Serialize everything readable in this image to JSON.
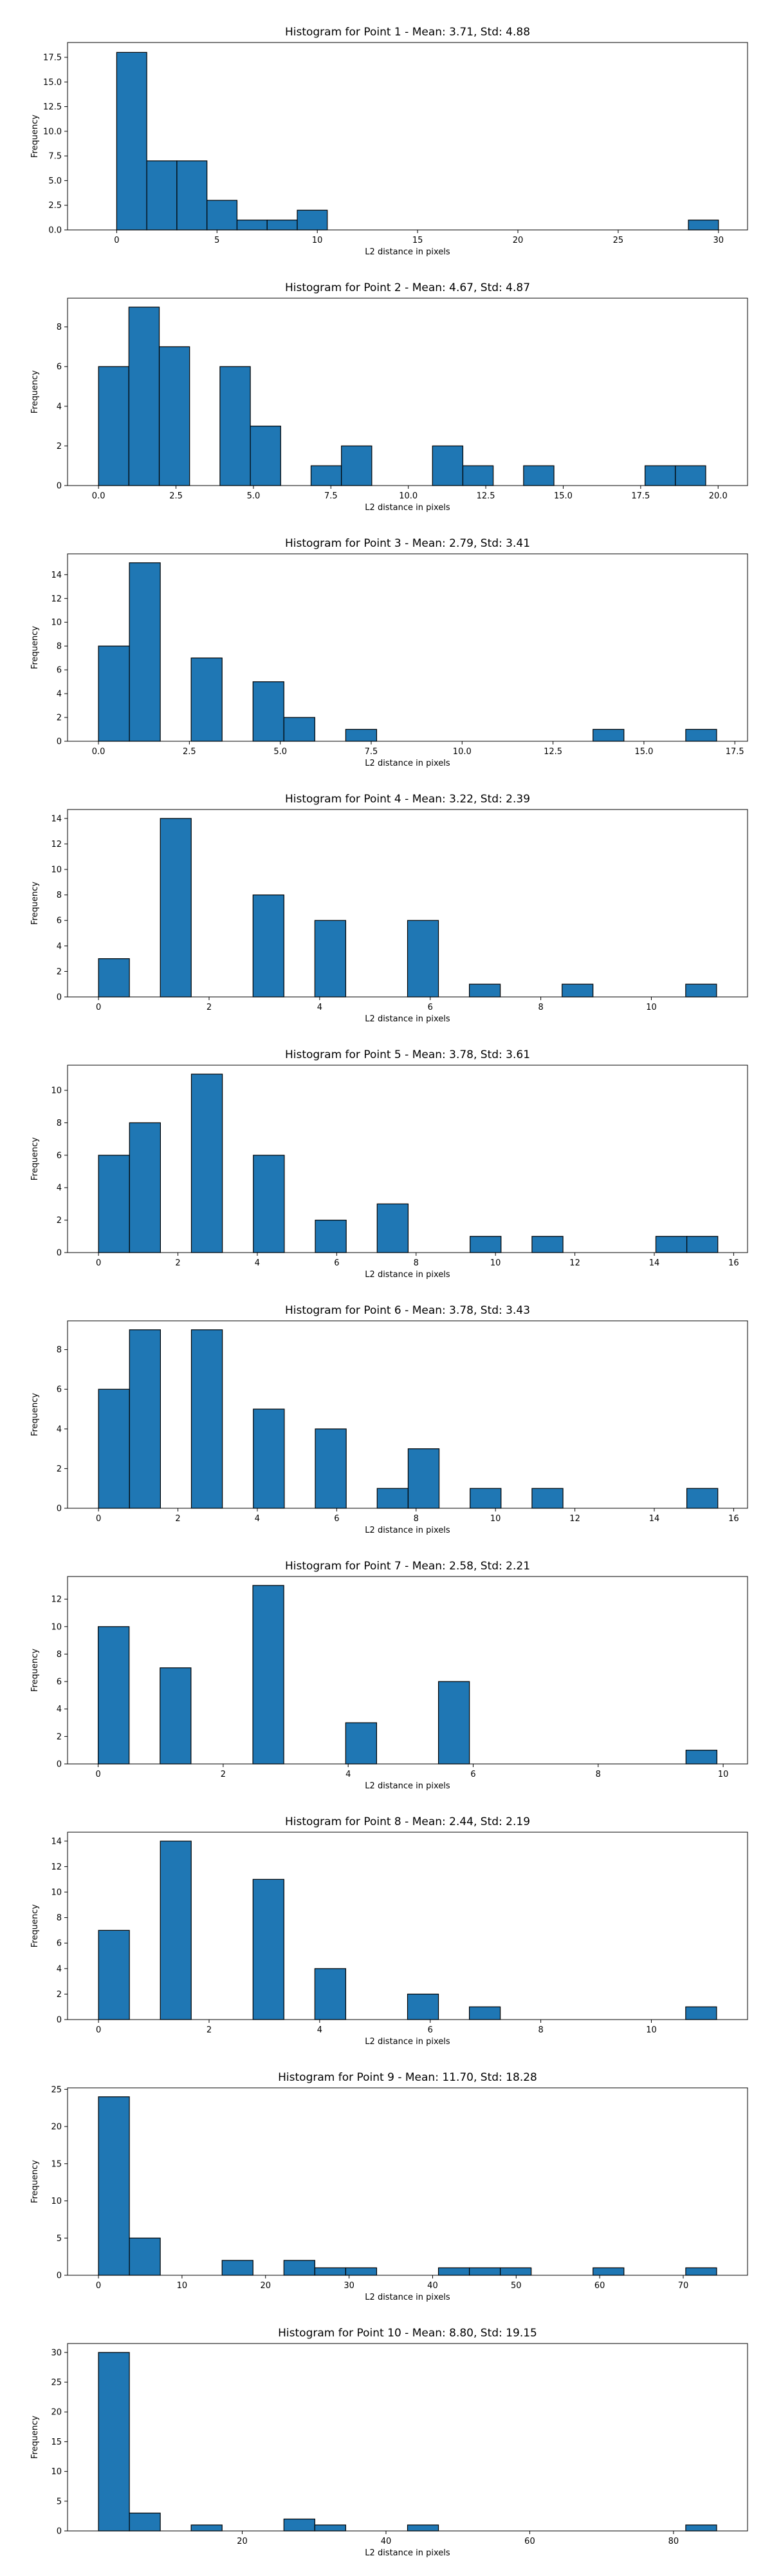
{
  "colors": {
    "bar": "#1f77b4",
    "edge": "#000000",
    "background": "#ffffff"
  },
  "chart_data": [
    {
      "type": "bar",
      "title": "Histogram for Point 1 - Mean: 3.71, Std: 4.88",
      "xlabel": "L2 distance in pixels",
      "ylabel": "Frequency",
      "xlim": [
        -2.45,
        31.45
      ],
      "ylim": [
        0,
        19.0
      ],
      "xticks": [
        0,
        5,
        10,
        15,
        20,
        25,
        30
      ],
      "xtick_labels": [
        "0",
        "5",
        "10",
        "15",
        "20",
        "25",
        "30"
      ],
      "yticks": [
        0,
        2.5,
        5.0,
        7.5,
        10.0,
        12.5,
        15.0,
        17.5
      ],
      "ytick_labels": [
        "0.0",
        "2.5",
        "5.0",
        "7.5",
        "10.0",
        "12.5",
        "15.0",
        "17.5"
      ],
      "bin_edges": [
        0,
        1.5,
        3.0,
        4.5,
        6.0,
        7.5,
        9.0,
        10.5,
        12.0,
        13.5,
        15.0,
        16.5,
        18.0,
        19.5,
        21.0,
        22.5,
        24.0,
        25.5,
        27.0,
        28.5,
        30.0
      ],
      "counts": [
        18,
        7,
        7,
        3,
        1,
        1,
        2,
        0,
        0,
        0,
        0,
        0,
        0,
        0,
        0,
        0,
        0,
        0,
        0,
        1
      ],
      "grid": false
    },
    {
      "type": "bar",
      "title": "Histogram for Point 2 - Mean: 4.67, Std: 4.87",
      "xlabel": "L2 distance in pixels",
      "ylabel": "Frequency",
      "xlim": [
        -1.0,
        20.95
      ],
      "ylim": [
        0,
        9.45
      ],
      "xticks": [
        0,
        2.5,
        5.0,
        7.5,
        10.0,
        12.5,
        15.0,
        17.5,
        20.0
      ],
      "xtick_labels": [
        "0.0",
        "2.5",
        "5.0",
        "7.5",
        "10.0",
        "12.5",
        "15.0",
        "17.5",
        "20.0"
      ],
      "yticks": [
        0,
        2,
        4,
        6,
        8
      ],
      "ytick_labels": [
        "0",
        "2",
        "4",
        "6",
        "8"
      ],
      "bin_edges": [
        0,
        0.98,
        1.96,
        2.94,
        3.92,
        4.9,
        5.88,
        6.86,
        7.84,
        8.82,
        9.8,
        10.78,
        11.76,
        12.74,
        13.72,
        14.7,
        15.68,
        16.66,
        17.64,
        18.62,
        19.6
      ],
      "counts": [
        6,
        9,
        7,
        0,
        6,
        3,
        0,
        1,
        2,
        0,
        0,
        2,
        1,
        0,
        1,
        0,
        0,
        0,
        1,
        1
      ],
      "grid": false
    },
    {
      "type": "bar",
      "title": "Histogram for Point 3 - Mean: 2.79, Std: 3.41",
      "xlabel": "L2 distance in pixels",
      "ylabel": "Frequency",
      "xlim": [
        -0.85,
        17.85
      ],
      "ylim": [
        0,
        15.75
      ],
      "xticks": [
        0,
        2.5,
        5.0,
        7.5,
        10.0,
        12.5,
        15.0,
        17.5
      ],
      "xtick_labels": [
        "0.0",
        "2.5",
        "5.0",
        "7.5",
        "10.0",
        "12.5",
        "15.0",
        "17.5"
      ],
      "yticks": [
        0,
        2,
        4,
        6,
        8,
        10,
        12,
        14
      ],
      "ytick_labels": [
        "0",
        "2",
        "4",
        "6",
        "8",
        "10",
        "12",
        "14"
      ],
      "bin_edges": [
        0,
        0.85,
        1.7,
        2.55,
        3.4,
        4.25,
        5.1,
        5.95,
        6.8,
        7.65,
        8.5,
        9.35,
        10.2,
        11.05,
        11.9,
        12.75,
        13.6,
        14.45,
        15.3,
        16.15,
        17.0
      ],
      "counts": [
        8,
        15,
        0,
        7,
        0,
        5,
        2,
        0,
        1,
        0,
        0,
        0,
        0,
        0,
        0,
        0,
        1,
        0,
        0,
        1
      ],
      "grid": false
    },
    {
      "type": "bar",
      "title": "Histogram for Point 4 - Mean: 3.22, Std: 2.39",
      "xlabel": "L2 distance in pixels",
      "ylabel": "Frequency",
      "xlim": [
        -0.56,
        11.74
      ],
      "ylim": [
        0,
        14.7
      ],
      "xticks": [
        0,
        2,
        4,
        6,
        8,
        10
      ],
      "xtick_labels": [
        "0",
        "2",
        "4",
        "6",
        "8",
        "10"
      ],
      "yticks": [
        0,
        2,
        4,
        6,
        8,
        10,
        12,
        14
      ],
      "ytick_labels": [
        "0",
        "2",
        "4",
        "6",
        "8",
        "10",
        "12",
        "14"
      ],
      "bin_edges": [
        0,
        0.559,
        1.118,
        1.677,
        2.236,
        2.795,
        3.354,
        3.913,
        4.472,
        5.031,
        5.59,
        6.149,
        6.708,
        7.267,
        7.826,
        8.385,
        8.944,
        9.503,
        10.062,
        10.621,
        11.18
      ],
      "counts": [
        3,
        0,
        14,
        0,
        0,
        8,
        0,
        6,
        0,
        0,
        6,
        0,
        1,
        0,
        0,
        1,
        0,
        0,
        0,
        1
      ],
      "grid": false
    },
    {
      "type": "bar",
      "title": "Histogram for Point 5 - Mean: 3.78, Std: 3.61",
      "xlabel": "L2 distance in pixels",
      "ylabel": "Frequency",
      "xlim": [
        -0.78,
        16.35
      ],
      "ylim": [
        0,
        11.55
      ],
      "xticks": [
        0,
        2,
        4,
        6,
        8,
        10,
        12,
        14,
        16
      ],
      "xtick_labels": [
        "0",
        "2",
        "4",
        "6",
        "8",
        "10",
        "12",
        "14",
        "16"
      ],
      "yticks": [
        0,
        2,
        4,
        6,
        8,
        10
      ],
      "ytick_labels": [
        "0",
        "2",
        "4",
        "6",
        "8",
        "10"
      ],
      "bin_edges": [
        0,
        0.78,
        1.56,
        2.34,
        3.12,
        3.9,
        4.68,
        5.46,
        6.24,
        7.02,
        7.8,
        8.58,
        9.36,
        10.14,
        10.92,
        11.7,
        12.48,
        13.26,
        14.04,
        14.82,
        15.6
      ],
      "counts": [
        6,
        8,
        0,
        11,
        0,
        6,
        0,
        2,
        0,
        3,
        0,
        0,
        1,
        0,
        1,
        0,
        0,
        0,
        1,
        1
      ],
      "grid": false
    },
    {
      "type": "bar",
      "title": "Histogram for Point 6 - Mean: 3.78, Std: 3.43",
      "xlabel": "L2 distance in pixels",
      "ylabel": "Frequency",
      "xlim": [
        -0.78,
        16.35
      ],
      "ylim": [
        0,
        9.45
      ],
      "xticks": [
        0,
        2,
        4,
        6,
        8,
        10,
        12,
        14,
        16
      ],
      "xtick_labels": [
        "0",
        "2",
        "4",
        "6",
        "8",
        "10",
        "12",
        "14",
        "16"
      ],
      "yticks": [
        0,
        2,
        4,
        6,
        8
      ],
      "ytick_labels": [
        "0",
        "2",
        "4",
        "6",
        "8"
      ],
      "bin_edges": [
        0,
        0.78,
        1.56,
        2.34,
        3.12,
        3.9,
        4.68,
        5.46,
        6.24,
        7.02,
        7.8,
        8.58,
        9.36,
        10.14,
        10.92,
        11.7,
        12.48,
        13.26,
        14.04,
        14.82,
        15.6
      ],
      "counts": [
        6,
        9,
        0,
        9,
        0,
        5,
        0,
        4,
        0,
        1,
        3,
        0,
        1,
        0,
        1,
        0,
        0,
        0,
        0,
        1
      ],
      "grid": false
    },
    {
      "type": "bar",
      "title": "Histogram for Point 7 - Mean: 2.58, Std: 2.21",
      "xlabel": "L2 distance in pixels",
      "ylabel": "Frequency",
      "xlim": [
        -0.49,
        10.39
      ],
      "ylim": [
        0,
        13.65
      ],
      "xticks": [
        0,
        2,
        4,
        6,
        8,
        10
      ],
      "xtick_labels": [
        "0",
        "2",
        "4",
        "6",
        "8",
        "10"
      ],
      "yticks": [
        0,
        2,
        4,
        6,
        8,
        10,
        12
      ],
      "ytick_labels": [
        "0",
        "2",
        "4",
        "6",
        "8",
        "10",
        "12"
      ],
      "bin_edges": [
        0,
        0.495,
        0.99,
        1.485,
        1.98,
        2.475,
        2.97,
        3.465,
        3.96,
        4.455,
        4.95,
        5.445,
        5.94,
        6.435,
        6.93,
        7.425,
        7.92,
        8.415,
        8.91,
        9.405,
        9.9
      ],
      "counts": [
        10,
        0,
        7,
        0,
        0,
        13,
        0,
        0,
        3,
        0,
        0,
        6,
        0,
        0,
        0,
        0,
        0,
        0,
        0,
        1
      ],
      "grid": false
    },
    {
      "type": "bar",
      "title": "Histogram for Point 8 - Mean: 2.44, Std: 2.19",
      "xlabel": "L2 distance in pixels",
      "ylabel": "Frequency",
      "xlim": [
        -0.56,
        11.74
      ],
      "ylim": [
        0,
        14.7
      ],
      "xticks": [
        0,
        2,
        4,
        6,
        8,
        10
      ],
      "xtick_labels": [
        "0",
        "2",
        "4",
        "6",
        "8",
        "10"
      ],
      "yticks": [
        0,
        2,
        4,
        6,
        8,
        10,
        12,
        14
      ],
      "ytick_labels": [
        "0",
        "2",
        "4",
        "6",
        "8",
        "10",
        "12",
        "14"
      ],
      "bin_edges": [
        0,
        0.559,
        1.118,
        1.677,
        2.236,
        2.795,
        3.354,
        3.913,
        4.472,
        5.031,
        5.59,
        6.149,
        6.708,
        7.267,
        7.826,
        8.385,
        8.944,
        9.503,
        10.062,
        10.621,
        11.18
      ],
      "counts": [
        7,
        0,
        14,
        0,
        0,
        11,
        0,
        4,
        0,
        0,
        2,
        0,
        1,
        0,
        0,
        0,
        0,
        0,
        0,
        1
      ],
      "grid": false
    },
    {
      "type": "bar",
      "title": "Histogram for Point 9 - Mean: 11.70, Std: 18.28",
      "xlabel": "L2 distance in pixels",
      "ylabel": "Frequency",
      "xlim": [
        -3.7,
        77.7
      ],
      "ylim": [
        0,
        25.2
      ],
      "xticks": [
        0,
        10,
        20,
        30,
        40,
        50,
        60,
        70
      ],
      "xtick_labels": [
        "0",
        "10",
        "20",
        "30",
        "40",
        "50",
        "60",
        "70"
      ],
      "yticks": [
        0,
        5,
        10,
        15,
        20,
        25
      ],
      "ytick_labels": [
        "0",
        "5",
        "10",
        "15",
        "20",
        "25"
      ],
      "bin_edges": [
        0,
        3.7,
        7.4,
        11.1,
        14.8,
        18.5,
        22.2,
        25.9,
        29.6,
        33.3,
        37.0,
        40.7,
        44.4,
        48.1,
        51.8,
        55.5,
        59.2,
        62.9,
        66.6,
        70.3,
        74.0
      ],
      "counts": [
        24,
        5,
        0,
        0,
        2,
        0,
        2,
        1,
        1,
        0,
        0,
        1,
        1,
        1,
        0,
        0,
        1,
        0,
        0,
        1
      ],
      "grid": false
    },
    {
      "type": "bar",
      "title": "Histogram for Point 10 - Mean: 8.80, Std: 19.15",
      "xlabel": "L2 distance in pixels",
      "ylabel": "Frequency",
      "xlim": [
        -4.3,
        90.3
      ],
      "ylim": [
        0,
        31.5
      ],
      "xticks": [
        20,
        40,
        60,
        80
      ],
      "xtick_labels": [
        "20",
        "40",
        "60",
        "80"
      ],
      "yticks": [
        0,
        5,
        10,
        15,
        20,
        25,
        30
      ],
      "ytick_labels": [
        "0",
        "5",
        "10",
        "15",
        "20",
        "25",
        "30"
      ],
      "bin_edges": [
        0,
        4.3,
        8.6,
        12.9,
        17.2,
        21.5,
        25.8,
        30.1,
        34.4,
        38.7,
        43.0,
        47.3,
        51.6,
        55.9,
        60.2,
        64.5,
        68.8,
        73.1,
        77.4,
        81.7,
        86.0
      ],
      "counts": [
        30,
        3,
        0,
        1,
        0,
        0,
        2,
        1,
        0,
        0,
        1,
        0,
        0,
        0,
        0,
        0,
        0,
        0,
        0,
        1
      ],
      "grid": false
    }
  ]
}
